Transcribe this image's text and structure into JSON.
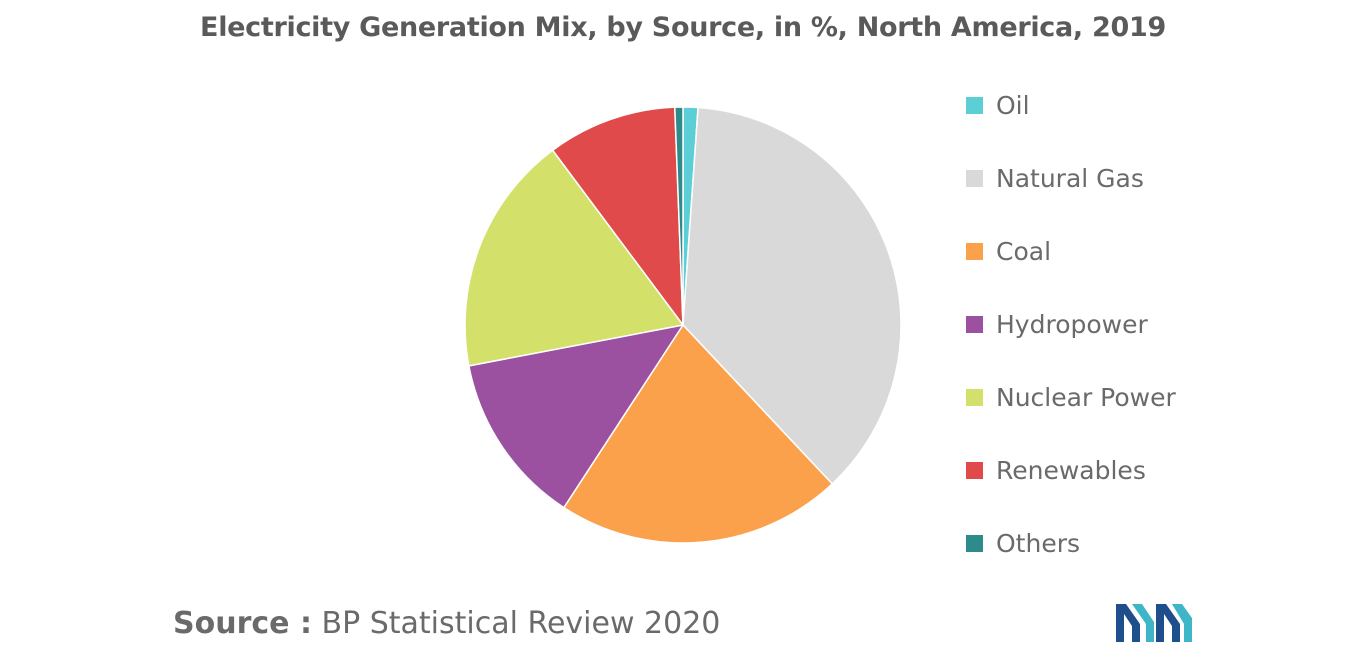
{
  "chart_data": {
    "type": "pie",
    "title": "Electricity Generation Mix, by Source, in %, North America, 2019",
    "categories": [
      "Oil",
      "Natural Gas",
      "Coal",
      "Hydropower",
      "Nuclear Power",
      "Renewables",
      "Others"
    ],
    "values": [
      1.1,
      36.9,
      21.2,
      12.8,
      17.8,
      9.6,
      0.6
    ],
    "colors": [
      "#5ccfd6",
      "#d9d9d9",
      "#fba04b",
      "#9b51a0",
      "#d3e16a",
      "#e04a4a",
      "#2e8b8b"
    ],
    "legend_position": "right",
    "start_angle_deg": 0,
    "direction": "clockwise"
  },
  "source": {
    "prefix": "Source :",
    "text": "BP Statistical Review 2020"
  },
  "logo": {
    "icon": "mordor-intelligence-logo-icon",
    "colors": [
      "#1f4e8c",
      "#3fb6c8"
    ]
  }
}
